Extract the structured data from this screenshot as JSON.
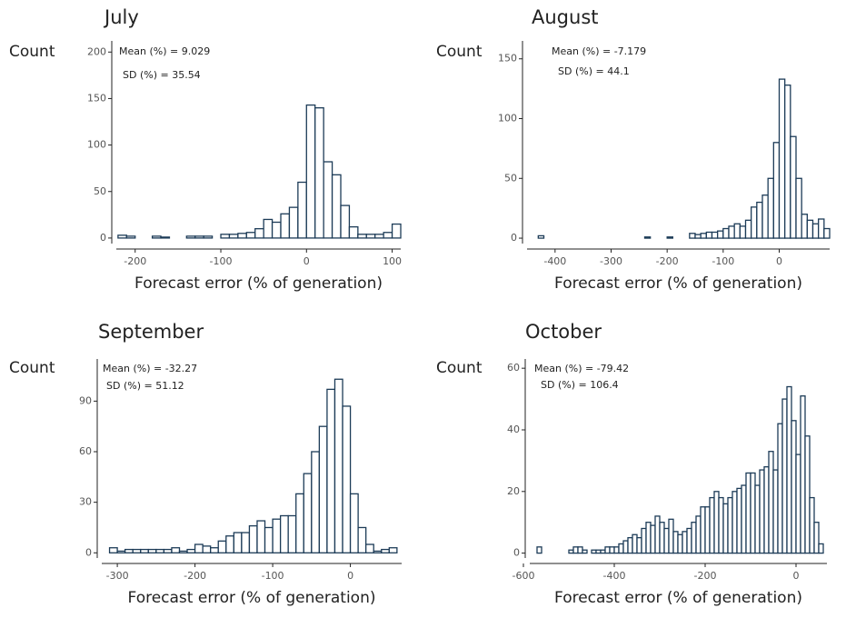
{
  "chart_data": [
    {
      "type": "histogram",
      "title": "July",
      "y_label": "Count",
      "x_label": "Forecast error (% of generation)",
      "annotations": [
        "Mean (%) = 9.029",
        "SD (%) = 35.54"
      ],
      "color": "#1c3b57",
      "fill": "#ffffff",
      "bins": [
        -220,
        -210,
        -200,
        -190,
        -180,
        -170,
        -160,
        -150,
        -140,
        -130,
        -120,
        -110,
        -100,
        -90,
        -80,
        -70,
        -60,
        -50,
        -40,
        -30,
        -20,
        -10,
        0,
        10,
        20,
        30,
        40,
        50,
        60,
        70,
        80,
        90,
        100,
        110
      ],
      "values": [
        3,
        2,
        0,
        0,
        2,
        1,
        0,
        0,
        2,
        2,
        2,
        0,
        4,
        4,
        5,
        6,
        10,
        20,
        17,
        26,
        33,
        60,
        143,
        140,
        82,
        68,
        35,
        12,
        4,
        4,
        4,
        6,
        15
      ],
      "xlim": [
        -222,
        110
      ],
      "ylim": [
        -4,
        212
      ],
      "xticks": [
        -200,
        -100,
        0,
        100
      ],
      "yticks": [
        0,
        50,
        100,
        150,
        200
      ]
    },
    {
      "type": "histogram",
      "title": "August",
      "y_label": "Count",
      "x_label": "Forecast error (% of generation)",
      "annotations": [
        "Mean (%) = -7.179",
        "SD (%) = 44.1"
      ],
      "color": "#1c3b57",
      "fill": "#ffffff",
      "bins": [
        -430,
        -420,
        -410,
        -400,
        -390,
        -380,
        -370,
        -360,
        -350,
        -340,
        -330,
        -320,
        -310,
        -300,
        -290,
        -280,
        -270,
        -260,
        -250,
        -240,
        -230,
        -220,
        -210,
        -200,
        -190,
        -180,
        -170,
        -160,
        -150,
        -140,
        -130,
        -120,
        -110,
        -100,
        -90,
        -80,
        -70,
        -60,
        -50,
        -40,
        -30,
        -20,
        -10,
        0,
        10,
        20,
        30,
        40,
        50,
        60,
        70,
        80,
        90
      ],
      "values": [
        2,
        0,
        0,
        0,
        0,
        0,
        0,
        0,
        0,
        0,
        0,
        0,
        0,
        0,
        0,
        0,
        0,
        0,
        0,
        1,
        0,
        0,
        0,
        1,
        0,
        0,
        0,
        4,
        3,
        4,
        5,
        5,
        6,
        8,
        10,
        12,
        10,
        15,
        26,
        30,
        36,
        50,
        80,
        133,
        128,
        85,
        50,
        20,
        15,
        12,
        16,
        8
      ],
      "xlim": [
        -450,
        90
      ],
      "ylim": [
        -3,
        165
      ],
      "xticks": [
        -400,
        -300,
        -200,
        -100,
        0
      ],
      "yticks": [
        0,
        50,
        100,
        150
      ]
    },
    {
      "type": "histogram",
      "title": "September",
      "y_label": "Count",
      "x_label": "Forecast error (% of generation)",
      "annotations": [
        "Mean (%) = -32.27",
        "SD (%) = 51.12"
      ],
      "color": "#1c3b57",
      "fill": "#ffffff",
      "bins": [
        -310,
        -300,
        -290,
        -280,
        -270,
        -260,
        -250,
        -240,
        -230,
        -220,
        -210,
        -200,
        -190,
        -180,
        -170,
        -160,
        -150,
        -140,
        -130,
        -120,
        -110,
        -100,
        -90,
        -80,
        -70,
        -60,
        -50,
        -40,
        -30,
        -20,
        -10,
        0,
        10,
        20,
        30,
        40,
        50,
        60
      ],
      "values": [
        3,
        1,
        2,
        2,
        2,
        2,
        2,
        2,
        3,
        1,
        2,
        5,
        4,
        3,
        7,
        10,
        12,
        12,
        16,
        19,
        15,
        20,
        22,
        22,
        35,
        47,
        60,
        75,
        97,
        103,
        87,
        35,
        15,
        5,
        1,
        2,
        3
      ],
      "xlim": [
        -320,
        66
      ],
      "ylim": [
        -2,
        115
      ],
      "xticks": [
        -300,
        -200,
        -100,
        0
      ],
      "yticks": [
        0,
        30,
        60,
        90
      ]
    },
    {
      "type": "histogram",
      "title": "October",
      "y_label": "Count",
      "x_label": "Forecast error (% of generation)",
      "annotations": [
        "Mean (%) = -79.42",
        "SD (%) = 106.4"
      ],
      "color": "#1c3b57",
      "fill": "#ffffff",
      "bins": [
        -570,
        -560,
        -550,
        -540,
        -530,
        -520,
        -510,
        -500,
        -490,
        -480,
        -470,
        -460,
        -450,
        -440,
        -430,
        -420,
        -410,
        -400,
        -390,
        -380,
        -370,
        -360,
        -350,
        -340,
        -330,
        -320,
        -310,
        -300,
        -290,
        -280,
        -270,
        -260,
        -250,
        -240,
        -230,
        -220,
        -210,
        -200,
        -190,
        -180,
        -170,
        -160,
        -150,
        -140,
        -130,
        -120,
        -110,
        -100,
        -90,
        -80,
        -70,
        -60,
        -50,
        -40,
        -30,
        -20,
        -10,
        0,
        10,
        20,
        30,
        40,
        50,
        60
      ],
      "values": [
        2,
        0,
        0,
        0,
        0,
        0,
        0,
        1,
        2,
        2,
        1,
        0,
        1,
        1,
        1,
        2,
        2,
        2,
        3,
        4,
        5,
        6,
        5,
        8,
        10,
        9,
        12,
        10,
        8,
        11,
        7,
        6,
        7,
        8,
        10,
        12,
        15,
        15,
        18,
        20,
        18,
        16,
        18,
        20,
        21,
        22,
        26,
        26,
        22,
        27,
        28,
        33,
        27,
        42,
        50,
        54,
        43,
        32,
        51,
        38,
        18,
        10,
        3
      ],
      "xlim": [
        -586,
        68
      ],
      "ylim": [
        -1,
        63
      ],
      "xticks": [
        -600,
        -400,
        -200,
        0
      ],
      "yticks": [
        0,
        20,
        40,
        60
      ]
    }
  ]
}
